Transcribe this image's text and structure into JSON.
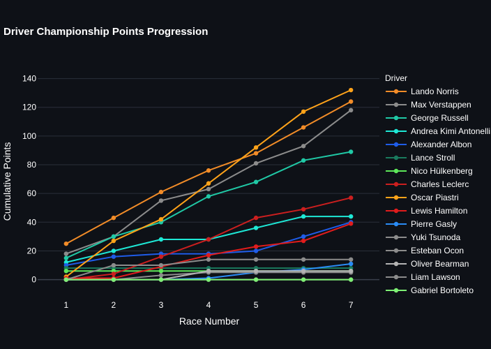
{
  "chart_data": {
    "type": "line",
    "title": "Driver Championship Points Progression",
    "xlabel": "Race Number",
    "ylabel": "Cumulative Points",
    "x": [
      1,
      2,
      3,
      4,
      5,
      6,
      7
    ],
    "xlim": [
      0.4,
      7.6
    ],
    "ylim": [
      -7,
      150
    ],
    "yticks": [
      0,
      20,
      40,
      60,
      80,
      100,
      120,
      140
    ],
    "grid": true,
    "legend_title": "Driver",
    "legend_position": "right",
    "series": [
      {
        "name": "Lando Norris",
        "color": "#f28c28",
        "values": [
          25,
          43,
          61,
          76,
          88,
          106,
          124
        ]
      },
      {
        "name": "Max Verstappen",
        "color": "#8c8c8c",
        "values": [
          18,
          30,
          55,
          63,
          81,
          93,
          118
        ]
      },
      {
        "name": "George Russell",
        "color": "#20c9a6",
        "values": [
          15,
          30,
          40,
          58,
          68,
          83,
          89
        ]
      },
      {
        "name": "Andrea Kimi Antonelli",
        "color": "#1ee8d6",
        "values": [
          12,
          20,
          28,
          28,
          36,
          44,
          44
        ]
      },
      {
        "name": "Alexander Albon",
        "color": "#1f5ce8",
        "values": [
          10,
          16,
          18,
          18,
          20,
          30,
          40
        ]
      },
      {
        "name": "Lance Stroll",
        "color": "#1a7a5e",
        "values": [
          8,
          8,
          8,
          8,
          8,
          8,
          8
        ]
      },
      {
        "name": "Nico Hülkenberg",
        "color": "#5ee85a",
        "values": [
          6,
          6,
          6,
          6,
          6,
          6,
          6
        ]
      },
      {
        "name": "Charles Leclerc",
        "color": "#cc1f1f",
        "values": [
          0,
          4,
          16,
          28,
          43,
          49,
          57
        ]
      },
      {
        "name": "Oscar Piastri",
        "color": "#ffa31a",
        "values": [
          2,
          27,
          42,
          67,
          92,
          117,
          132
        ]
      },
      {
        "name": "Lewis Hamilton",
        "color": "#e01c1c",
        "values": [
          1,
          1,
          9,
          17,
          23,
          27,
          39
        ]
      },
      {
        "name": "Pierre Gasly",
        "color": "#2a8cf5",
        "values": [
          0,
          0,
          0,
          1,
          5,
          7,
          11
        ]
      },
      {
        "name": "Yuki Tsunoda",
        "color": "#8c8c8c",
        "values": [
          0,
          0,
          3,
          5,
          5,
          5,
          5
        ]
      },
      {
        "name": "Esteban Ocon",
        "color": "#8c8c8c",
        "values": [
          0,
          10,
          10,
          14,
          14,
          14,
          14
        ]
      },
      {
        "name": "Oliver Bearman",
        "color": "#b4b4b4",
        "values": [
          0,
          0,
          0,
          6,
          6,
          6,
          6
        ]
      },
      {
        "name": "Liam Lawson",
        "color": "#8c8c8c",
        "values": [
          0,
          0,
          0,
          0,
          0,
          0,
          0
        ]
      },
      {
        "name": "Gabriel Bortoleto",
        "color": "#7ef074",
        "values": [
          0,
          0,
          0,
          0,
          0,
          0,
          0
        ]
      }
    ]
  }
}
